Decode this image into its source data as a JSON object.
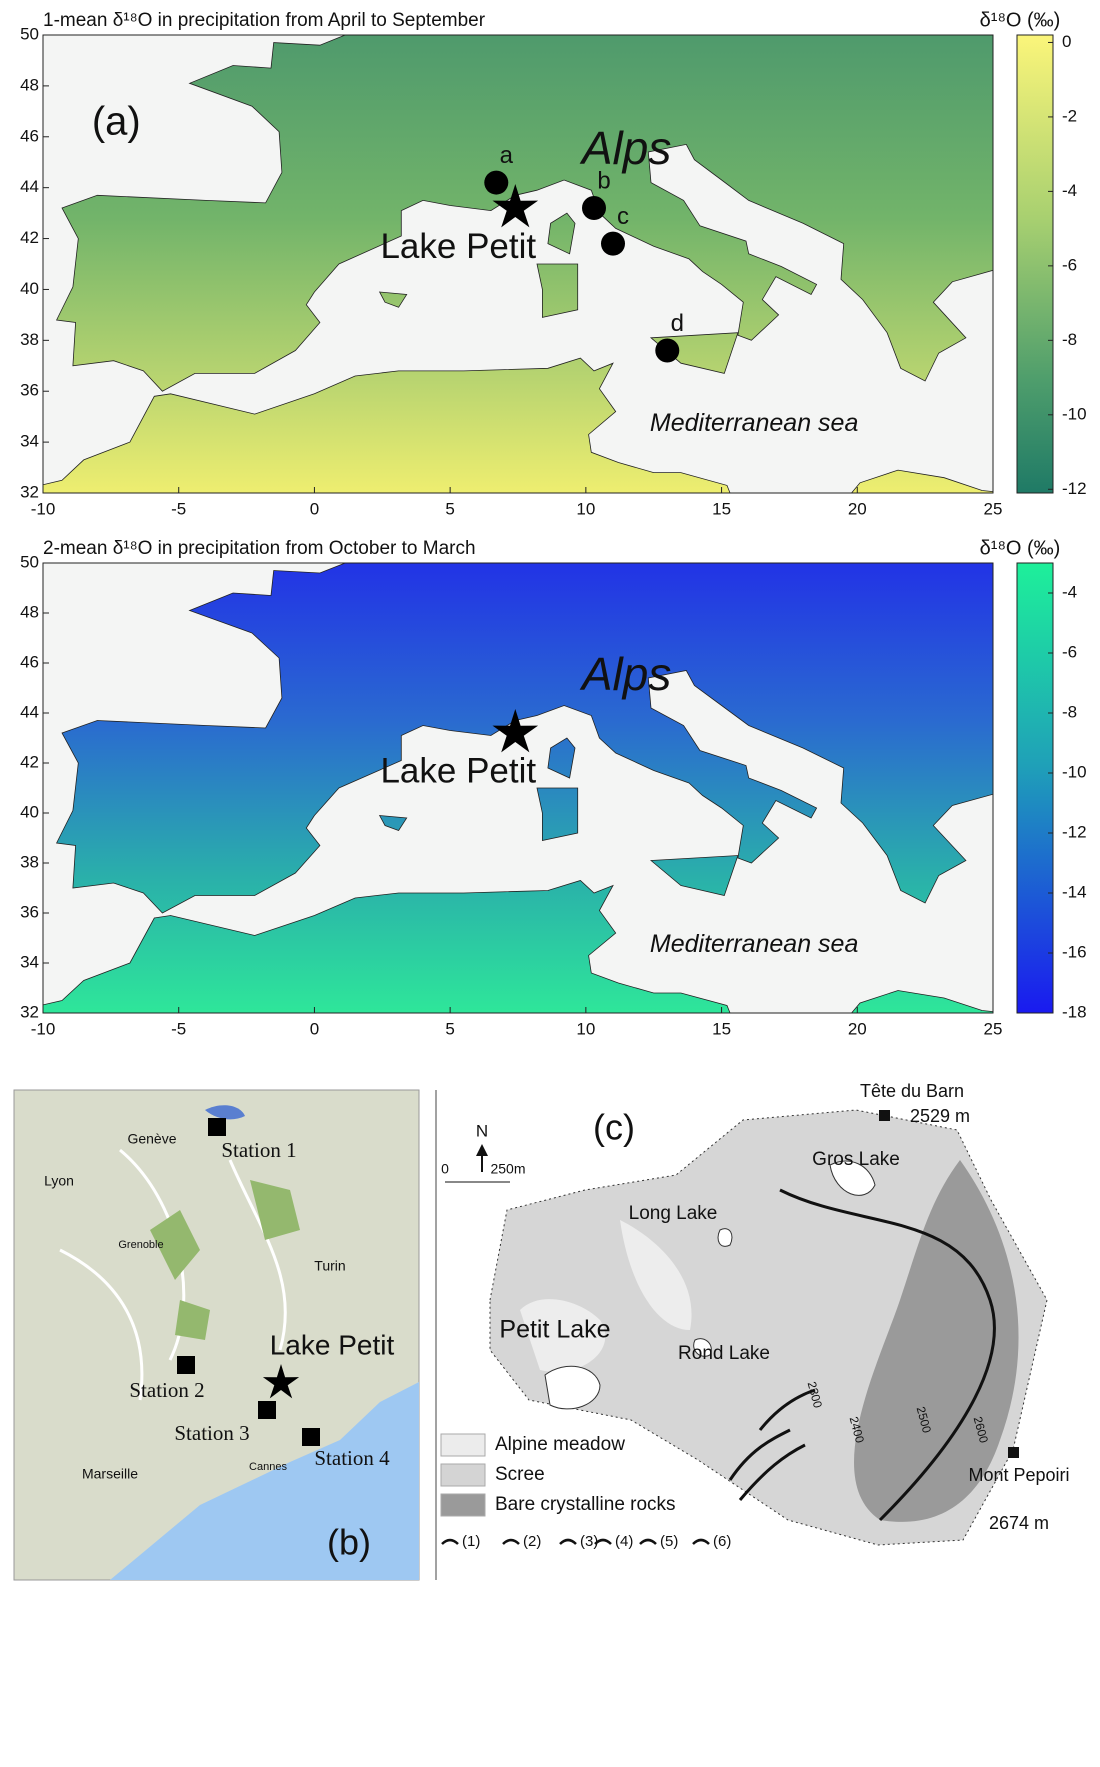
{
  "maps": [
    {
      "title": "1-mean δ¹⁸O in precipitation from April to September",
      "xlim": [
        -10,
        25
      ],
      "ylim": [
        32,
        50
      ],
      "xticks": [
        -10,
        -5,
        0,
        5,
        10,
        15,
        20,
        25
      ],
      "yticks": [
        32,
        34,
        36,
        38,
        40,
        42,
        44,
        46,
        48,
        50
      ],
      "colorbar": {
        "title": "δ¹⁸O (‰)",
        "lim": [
          0.2,
          -12.1
        ],
        "ticks": [
          0,
          -2,
          -4,
          -6,
          -8,
          -10,
          -12
        ]
      },
      "panel_label": "(a)",
      "region_label": "Alps",
      "site_label": "Lake Petit",
      "sea_label": "Mediterranean sea",
      "sites": [
        {
          "name": "a",
          "lon": 6.7,
          "lat": 44.2
        },
        {
          "name": "b",
          "lon": 10.3,
          "lat": 43.2
        },
        {
          "name": "c",
          "lon": 11,
          "lat": 41.8
        },
        {
          "name": "d",
          "lon": 13,
          "lat": 37.6
        }
      ],
      "lake": {
        "lon": 7.4,
        "lat": 43.2
      }
    },
    {
      "title": "2-mean δ¹⁸O in precipitation from October to March",
      "xlim": [
        -10,
        25
      ],
      "ylim": [
        32,
        50
      ],
      "xticks": [
        -10,
        -5,
        0,
        5,
        10,
        15,
        20,
        25
      ],
      "yticks": [
        32,
        34,
        36,
        38,
        40,
        42,
        44,
        46,
        48,
        50
      ],
      "colorbar": {
        "title": "δ¹⁸O (‰)",
        "lim": [
          -3,
          -18
        ],
        "ticks": [
          -4,
          -6,
          -8,
          -10,
          -12,
          -14,
          -16,
          -18
        ]
      },
      "region_label": "Alps",
      "site_label": "Lake Petit",
      "sea_label": "Mediterranean sea",
      "lake": {
        "lon": 7.4,
        "lat": 43.2
      }
    }
  ],
  "station_map": {
    "panel_label": "(b)",
    "places": [
      "Genève",
      "Lyon",
      "Grenoble",
      "Turin",
      "Marseille",
      "Cannes"
    ],
    "stations": [
      "Station 1",
      "Station 2",
      "Station 3",
      "Station 4"
    ],
    "lake": "Lake Petit"
  },
  "catchment_map": {
    "panel_label": "(c)",
    "north": "N",
    "scale": [
      "0",
      "250m"
    ],
    "peaks": [
      {
        "name": "Tête du Barn",
        "elevation": "2529 m"
      },
      {
        "name": "Mont Pepoiri",
        "elevation": "2674 m"
      }
    ],
    "lakes": [
      "Gros Lake",
      "Long Lake",
      "Petit Lake",
      "Rond Lake"
    ],
    "contours": [
      "2300",
      "2400",
      "2500",
      "2600"
    ],
    "legend": [
      "Alpine meadow",
      "Scree",
      "Bare crystalline rocks"
    ],
    "symbols": [
      "(1)",
      "(2)",
      "(3)",
      "(4)",
      "(5)",
      "(6)"
    ]
  }
}
